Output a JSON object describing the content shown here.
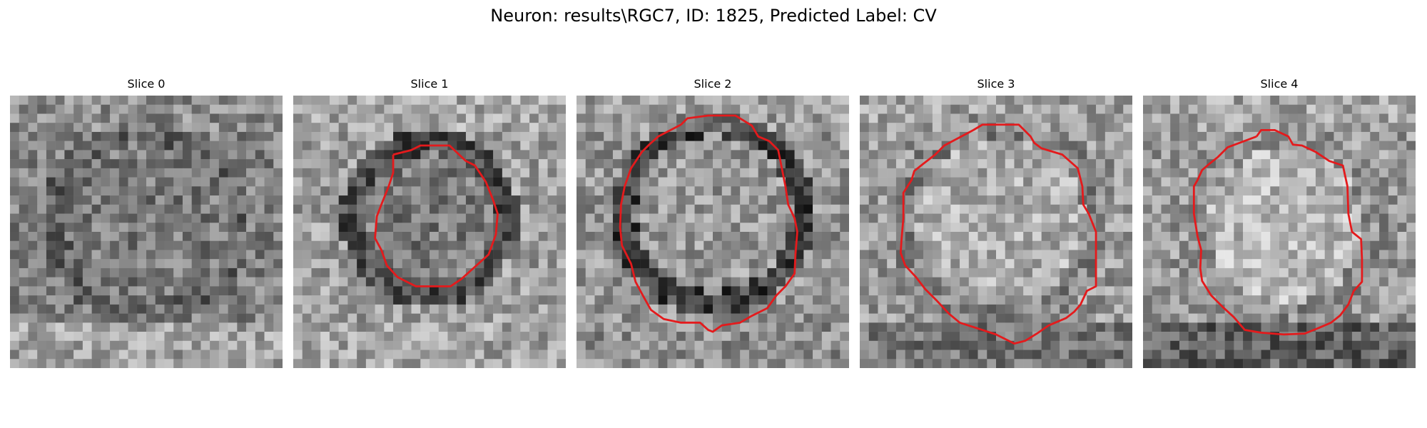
{
  "figure": {
    "title": "Neuron: results\\RGC7, ID: 1825, Predicted Label: CV",
    "neuron_path": "results\\RGC7",
    "neuron_id": "1825",
    "predicted_label": "CV"
  },
  "panels": [
    {
      "title": "Slice 0",
      "has_contour": false,
      "contour_color": "#e41a1c"
    },
    {
      "title": "Slice 1",
      "has_contour": true,
      "contour_color": "#e41a1c"
    },
    {
      "title": "Slice 2",
      "has_contour": true,
      "contour_color": "#e41a1c"
    },
    {
      "title": "Slice 3",
      "has_contour": true,
      "contour_color": "#e41a1c"
    },
    {
      "title": "Slice 4",
      "has_contour": true,
      "contour_color": "#e41a1c"
    }
  ],
  "colors": {
    "background": "#ffffff",
    "contour": "#e41a1c",
    "colormap": "grayscale"
  }
}
